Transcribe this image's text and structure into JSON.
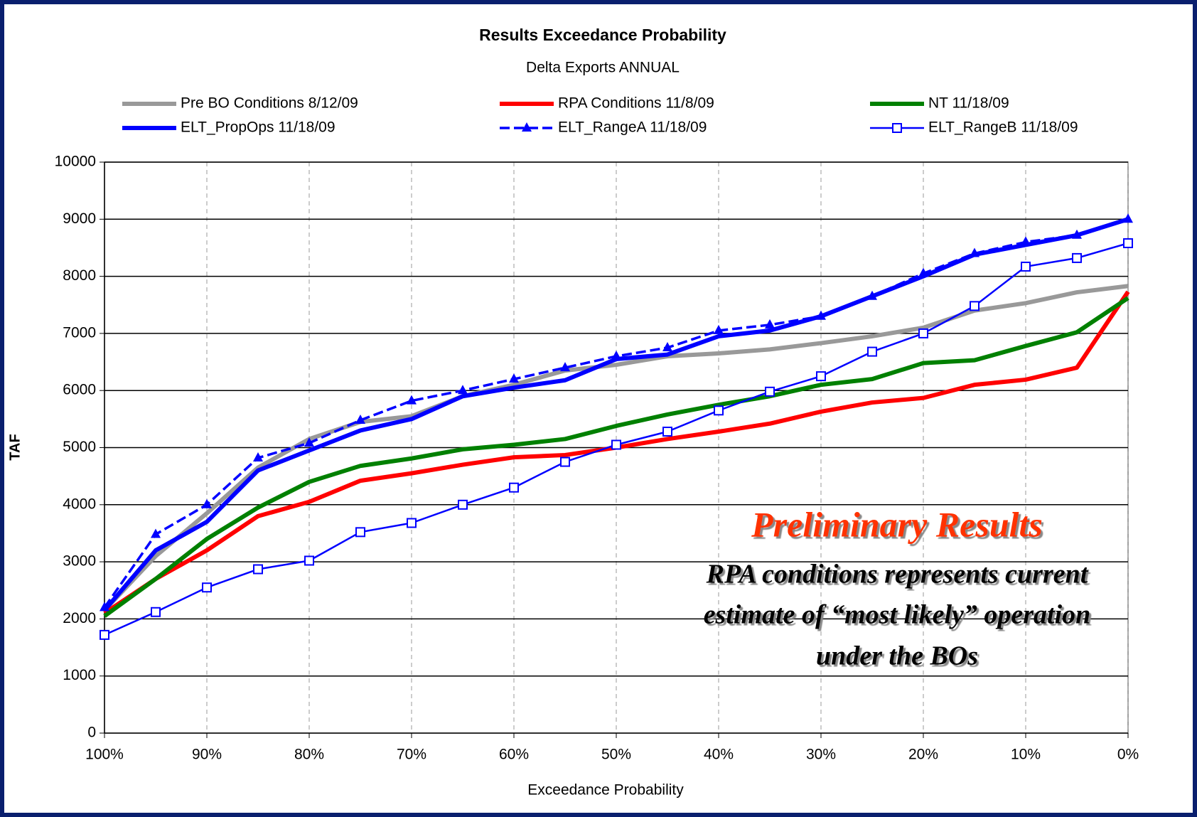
{
  "chart_data": {
    "type": "line",
    "title": "Results Exceedance Probability",
    "subtitle": "Delta Exports  ANNUAL",
    "x_label": "Exceedance Probability",
    "y_label": "TAF",
    "x": [
      100,
      95,
      90,
      85,
      80,
      75,
      70,
      65,
      60,
      55,
      50,
      45,
      40,
      35,
      30,
      25,
      20,
      15,
      10,
      5,
      0
    ],
    "xlim": [
      100,
      0
    ],
    "xticks": [
      {
        "value": 100,
        "label": "100%"
      },
      {
        "value": 90,
        "label": "90%"
      },
      {
        "value": 80,
        "label": "80%"
      },
      {
        "value": 70,
        "label": "70%"
      },
      {
        "value": 60,
        "label": "60%"
      },
      {
        "value": 50,
        "label": "50%"
      },
      {
        "value": 40,
        "label": "40%"
      },
      {
        "value": 30,
        "label": "30%"
      },
      {
        "value": 20,
        "label": "20%"
      },
      {
        "value": 10,
        "label": "10%"
      },
      {
        "value": 0,
        "label": "0%"
      }
    ],
    "ylim": [
      0,
      10000
    ],
    "yticks": [
      0,
      1000,
      2000,
      3000,
      4000,
      5000,
      6000,
      7000,
      8000,
      9000,
      10000
    ],
    "grid": true,
    "series": [
      {
        "name": "Pre BO Conditions 8/12/09",
        "color": "#999999",
        "values": [
          2150,
          3100,
          3850,
          4650,
          5150,
          5450,
          5550,
          5900,
          6100,
          6350,
          6450,
          6600,
          6650,
          6720,
          6830,
          6950,
          7100,
          7400,
          7530,
          7720,
          7830
        ]
      },
      {
        "name": "RPA Conditions 11/8/09",
        "color": "#ff0000",
        "values": [
          2100,
          2700,
          3200,
          3800,
          4050,
          4420,
          4550,
          4700,
          4830,
          4870,
          5000,
          5150,
          5280,
          5420,
          5630,
          5790,
          5870,
          6100,
          6190,
          6400,
          7730
        ]
      },
      {
        "name": "NT 11/18/09",
        "color": "#008000",
        "values": [
          2050,
          2700,
          3400,
          3950,
          4400,
          4680,
          4810,
          4970,
          5050,
          5150,
          5380,
          5580,
          5750,
          5900,
          6100,
          6200,
          6480,
          6530,
          6780,
          7020,
          7620
        ]
      },
      {
        "name": "ELT_PropOps 11/18/09",
        "color": "#0000ff",
        "values": [
          2150,
          3200,
          3700,
          4600,
          4950,
          5300,
          5500,
          5900,
          6050,
          6180,
          6550,
          6630,
          6950,
          7050,
          7300,
          7650,
          8000,
          8380,
          8550,
          8720,
          9000
        ]
      },
      {
        "name": "ELT_RangeA 11/18/09",
        "color": "#0000ff",
        "marker": "triangle",
        "line_style": "dashed",
        "values": [
          2200,
          3480,
          4000,
          4820,
          5080,
          5480,
          5820,
          6000,
          6200,
          6400,
          6600,
          6750,
          7050,
          7150,
          7300,
          7650,
          8050,
          8400,
          8600,
          8720,
          9000
        ]
      },
      {
        "name": "ELT_RangeB 11/18/09",
        "color": "#0000ff",
        "marker": "square",
        "values": [
          1720,
          2120,
          2550,
          2870,
          3020,
          3520,
          3680,
          4000,
          4300,
          4750,
          5050,
          5280,
          5650,
          5980,
          6250,
          6680,
          7000,
          7480,
          8170,
          8320,
          8580
        ]
      }
    ],
    "annotations": [
      "Preliminary Results",
      "RPA conditions represents current",
      "estimate of “most likely” operation",
      "under the BOs"
    ]
  }
}
